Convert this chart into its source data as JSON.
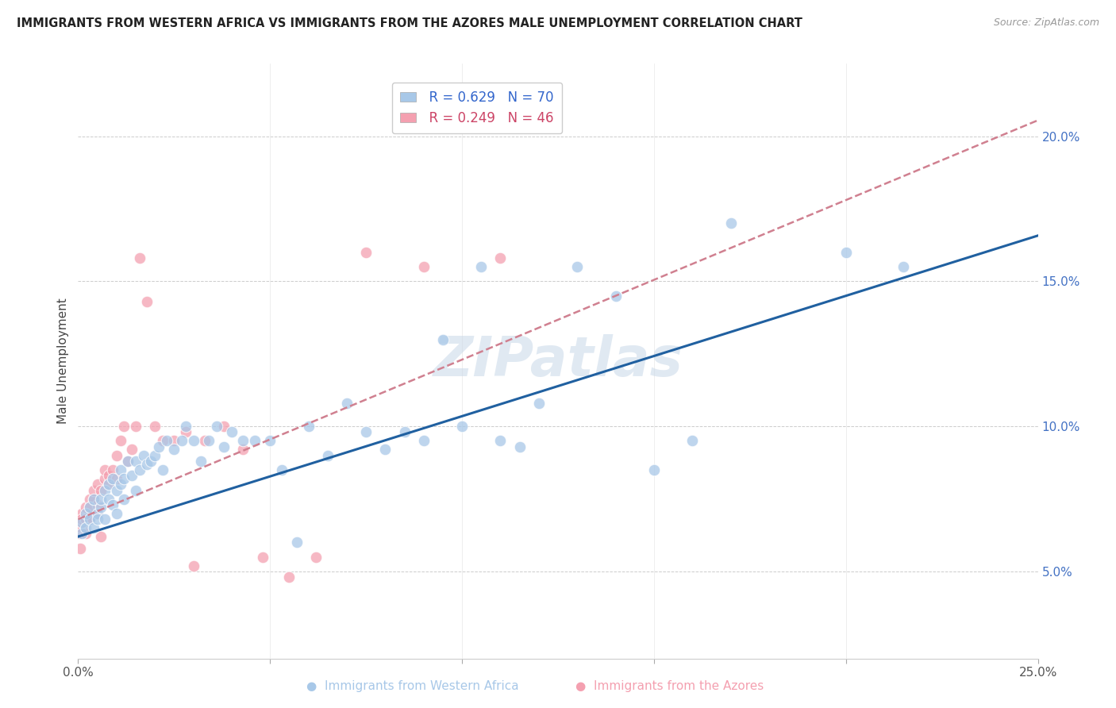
{
  "title": "IMMIGRANTS FROM WESTERN AFRICA VS IMMIGRANTS FROM THE AZORES MALE UNEMPLOYMENT CORRELATION CHART",
  "source": "Source: ZipAtlas.com",
  "ylabel": "Male Unemployment",
  "xlim": [
    0,
    0.25
  ],
  "ylim": [
    0.02,
    0.225
  ],
  "yticks_right": [
    0.05,
    0.1,
    0.15,
    0.2
  ],
  "ytick_labels_right": [
    "5.0%",
    "10.0%",
    "15.0%",
    "20.0%"
  ],
  "legend_blue_r": "R = 0.629",
  "legend_blue_n": "N = 70",
  "legend_pink_r": "R = 0.249",
  "legend_pink_n": "N = 46",
  "blue_color": "#a8c8e8",
  "pink_color": "#f4a0b0",
  "blue_line_color": "#2060a0",
  "pink_line_color": "#d08090",
  "watermark": "ZIPatlas",
  "blue_scatter_x": [
    0.001,
    0.001,
    0.002,
    0.002,
    0.003,
    0.003,
    0.004,
    0.004,
    0.005,
    0.005,
    0.006,
    0.006,
    0.007,
    0.007,
    0.008,
    0.008,
    0.009,
    0.009,
    0.01,
    0.01,
    0.011,
    0.011,
    0.012,
    0.012,
    0.013,
    0.014,
    0.015,
    0.015,
    0.016,
    0.017,
    0.018,
    0.019,
    0.02,
    0.021,
    0.022,
    0.023,
    0.025,
    0.027,
    0.028,
    0.03,
    0.032,
    0.034,
    0.036,
    0.038,
    0.04,
    0.043,
    0.046,
    0.05,
    0.053,
    0.057,
    0.06,
    0.065,
    0.07,
    0.075,
    0.08,
    0.085,
    0.09,
    0.095,
    0.1,
    0.105,
    0.11,
    0.115,
    0.12,
    0.13,
    0.14,
    0.15,
    0.16,
    0.17,
    0.2,
    0.215
  ],
  "blue_scatter_y": [
    0.063,
    0.067,
    0.065,
    0.07,
    0.068,
    0.072,
    0.065,
    0.075,
    0.07,
    0.068,
    0.072,
    0.075,
    0.068,
    0.078,
    0.075,
    0.08,
    0.073,
    0.082,
    0.07,
    0.078,
    0.08,
    0.085,
    0.075,
    0.082,
    0.088,
    0.083,
    0.078,
    0.088,
    0.085,
    0.09,
    0.087,
    0.088,
    0.09,
    0.093,
    0.085,
    0.095,
    0.092,
    0.095,
    0.1,
    0.095,
    0.088,
    0.095,
    0.1,
    0.093,
    0.098,
    0.095,
    0.095,
    0.095,
    0.085,
    0.06,
    0.1,
    0.09,
    0.108,
    0.098,
    0.092,
    0.098,
    0.095,
    0.13,
    0.1,
    0.155,
    0.095,
    0.093,
    0.108,
    0.155,
    0.145,
    0.085,
    0.095,
    0.17,
    0.16,
    0.155
  ],
  "pink_scatter_x": [
    0.0003,
    0.0005,
    0.001,
    0.001,
    0.001,
    0.002,
    0.002,
    0.002,
    0.003,
    0.003,
    0.003,
    0.004,
    0.004,
    0.005,
    0.005,
    0.005,
    0.006,
    0.006,
    0.007,
    0.007,
    0.008,
    0.008,
    0.009,
    0.01,
    0.01,
    0.011,
    0.012,
    0.013,
    0.014,
    0.015,
    0.016,
    0.018,
    0.02,
    0.022,
    0.025,
    0.028,
    0.03,
    0.033,
    0.038,
    0.043,
    0.048,
    0.055,
    0.062,
    0.075,
    0.09,
    0.11
  ],
  "pink_scatter_y": [
    0.063,
    0.058,
    0.07,
    0.065,
    0.068,
    0.072,
    0.063,
    0.068,
    0.075,
    0.072,
    0.068,
    0.075,
    0.078,
    0.07,
    0.073,
    0.08,
    0.062,
    0.078,
    0.082,
    0.085,
    0.08,
    0.083,
    0.085,
    0.09,
    0.082,
    0.095,
    0.1,
    0.088,
    0.092,
    0.1,
    0.158,
    0.143,
    0.1,
    0.095,
    0.095,
    0.098,
    0.052,
    0.095,
    0.1,
    0.092,
    0.055,
    0.048,
    0.055,
    0.16,
    0.155,
    0.158
  ]
}
